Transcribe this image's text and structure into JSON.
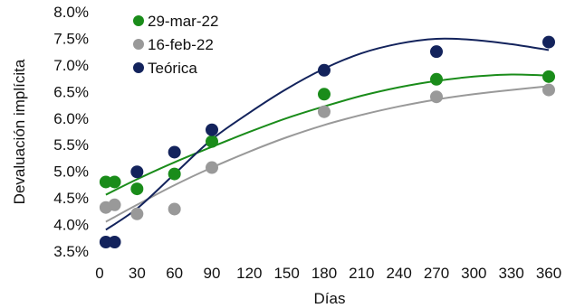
{
  "chart_data": {
    "type": "scatter",
    "xlabel": "Días",
    "ylabel": "Devaluación implícita",
    "xlim": [
      0,
      360
    ],
    "ylim": [
      3.5,
      8.0
    ],
    "x_ticks": [
      0,
      30,
      60,
      90,
      120,
      150,
      180,
      210,
      240,
      270,
      300,
      330,
      360
    ],
    "y_ticks": [
      3.5,
      4.0,
      4.5,
      5.0,
      5.5,
      6.0,
      6.5,
      7.0,
      7.5,
      8.0
    ],
    "y_tick_labels": [
      "3.5%",
      "4.0%",
      "4.5%",
      "5.0%",
      "5.5%",
      "6.0%",
      "6.5%",
      "7.0%",
      "7.5%",
      "8.0%"
    ],
    "grid": false,
    "legend_position": "top-left",
    "series": [
      {
        "name": "29-mar-22",
        "color": "#1a8c1a",
        "points": [
          [
            5,
            4.8
          ],
          [
            12,
            4.8
          ],
          [
            30,
            4.67
          ],
          [
            60,
            4.95
          ],
          [
            90,
            5.56
          ],
          [
            180,
            6.45
          ],
          [
            270,
            6.73
          ],
          [
            360,
            6.78
          ]
        ],
        "trend": [
          [
            5,
            4.56
          ],
          [
            30,
            4.85
          ],
          [
            60,
            5.17
          ],
          [
            90,
            5.46
          ],
          [
            120,
            5.74
          ],
          [
            150,
            6.0
          ],
          [
            180,
            6.22
          ],
          [
            210,
            6.42
          ],
          [
            240,
            6.58
          ],
          [
            270,
            6.7
          ],
          [
            300,
            6.78
          ],
          [
            330,
            6.82
          ],
          [
            360,
            6.8
          ]
        ]
      },
      {
        "name": "16-feb-22",
        "color": "#999999",
        "points": [
          [
            5,
            4.32
          ],
          [
            12,
            4.37
          ],
          [
            30,
            4.2
          ],
          [
            60,
            4.29
          ],
          [
            90,
            5.07
          ],
          [
            180,
            6.12
          ],
          [
            270,
            6.4
          ],
          [
            360,
            6.53
          ]
        ],
        "trend": [
          [
            5,
            4.05
          ],
          [
            30,
            4.37
          ],
          [
            60,
            4.74
          ],
          [
            90,
            5.07
          ],
          [
            120,
            5.37
          ],
          [
            150,
            5.64
          ],
          [
            180,
            5.87
          ],
          [
            210,
            6.06
          ],
          [
            240,
            6.22
          ],
          [
            270,
            6.35
          ],
          [
            300,
            6.45
          ],
          [
            330,
            6.53
          ],
          [
            360,
            6.6
          ]
        ]
      },
      {
        "name": "Teórica",
        "color": "#13235c",
        "points": [
          [
            5,
            3.67
          ],
          [
            12,
            3.67
          ],
          [
            30,
            4.99
          ],
          [
            60,
            5.36
          ],
          [
            90,
            5.78
          ],
          [
            180,
            6.9
          ],
          [
            270,
            7.25
          ],
          [
            360,
            7.43
          ]
        ],
        "trend": [
          [
            5,
            3.9
          ],
          [
            30,
            4.3
          ],
          [
            60,
            4.95
          ],
          [
            90,
            5.6
          ],
          [
            120,
            6.1
          ],
          [
            150,
            6.55
          ],
          [
            180,
            6.93
          ],
          [
            210,
            7.22
          ],
          [
            240,
            7.4
          ],
          [
            270,
            7.49
          ],
          [
            300,
            7.47
          ],
          [
            330,
            7.39
          ],
          [
            360,
            7.28
          ]
        ]
      }
    ]
  }
}
